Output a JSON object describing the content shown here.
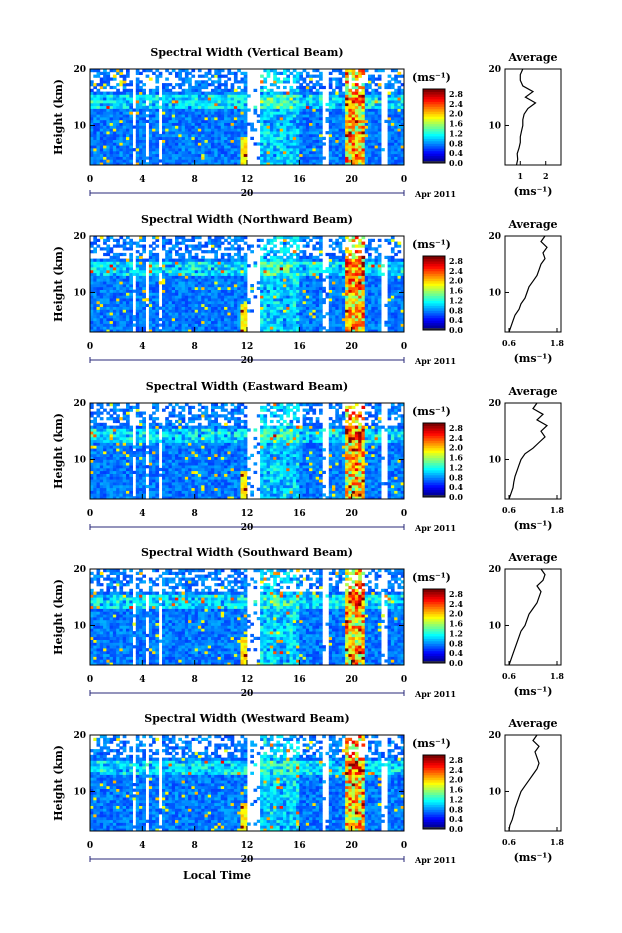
{
  "figure": {
    "date_label": "Apr 2011",
    "xlabel": "Local Time",
    "colorbar_unit": "(ms⁻¹)",
    "avg_title": "Average",
    "avg_unit": "(ms⁻¹)",
    "ylabel": "Height (km)"
  },
  "chart_data": [
    {
      "type": "heatmap",
      "title": "Spectral Width (Vertical Beam)",
      "ylabel": "Height (km)",
      "xlim": [
        0,
        24
      ],
      "ylim": [
        3,
        20
      ],
      "x_ticks": [
        "0",
        "4",
        "8",
        "12",
        "16",
        "20",
        "0"
      ],
      "day_tick": "20",
      "y_ticks": [
        "10",
        "20"
      ],
      "colorbar_ticks": [
        "0.0",
        "0.4",
        "0.8",
        "1.2",
        "1.6",
        "2.0",
        "2.4",
        "2.8"
      ],
      "colorbar_range": [
        0,
        3.0
      ],
      "average": {
        "xticks": [
          "1",
          "2"
        ],
        "xlim": [
          0.4,
          2.6
        ],
        "height": [
          3,
          4,
          5,
          6,
          7,
          8,
          9,
          10,
          11,
          12,
          13,
          14,
          15,
          16,
          17,
          18,
          19,
          20
        ],
        "value": [
          0.85,
          0.9,
          0.88,
          0.95,
          1.0,
          1.0,
          1.05,
          1.1,
          1.1,
          1.15,
          1.3,
          1.6,
          1.2,
          1.5,
          1.1,
          1.0,
          1.0,
          1.1
        ]
      }
    },
    {
      "type": "heatmap",
      "title": "Spectral Width (Northward Beam)",
      "ylabel": "Height (km)",
      "xlim": [
        0,
        24
      ],
      "ylim": [
        3,
        20
      ],
      "x_ticks": [
        "0",
        "4",
        "8",
        "12",
        "16",
        "20",
        "0"
      ],
      "day_tick": "20",
      "y_ticks": [
        "10",
        "20"
      ],
      "colorbar_ticks": [
        "0.0",
        "0.4",
        "0.8",
        "1.2",
        "1.6",
        "2.0",
        "2.4",
        "2.8"
      ],
      "colorbar_range": [
        0,
        3.0
      ],
      "average": {
        "xticks": [
          "0.6",
          "1.8"
        ],
        "xlim": [
          0.5,
          1.9
        ],
        "height": [
          3,
          4,
          5,
          6,
          7,
          8,
          9,
          10,
          11,
          12,
          13,
          14,
          15,
          16,
          17,
          18,
          19,
          20
        ],
        "value": [
          0.6,
          0.65,
          0.7,
          0.75,
          0.85,
          0.9,
          1.0,
          1.05,
          1.1,
          1.2,
          1.3,
          1.35,
          1.4,
          1.5,
          1.45,
          1.55,
          1.4,
          1.5
        ]
      }
    },
    {
      "type": "heatmap",
      "title": "Spectral Width (Eastward Beam)",
      "ylabel": "Height (km)",
      "xlim": [
        0,
        24
      ],
      "ylim": [
        3,
        20
      ],
      "x_ticks": [
        "0",
        "4",
        "8",
        "12",
        "16",
        "20",
        "0"
      ],
      "day_tick": "20",
      "y_ticks": [
        "10",
        "20"
      ],
      "colorbar_ticks": [
        "0.0",
        "0.4",
        "0.8",
        "1.2",
        "1.6",
        "2.0",
        "2.4",
        "2.8"
      ],
      "colorbar_range": [
        0,
        3.0
      ],
      "average": {
        "xticks": [
          "0.6",
          "1.8"
        ],
        "xlim": [
          0.5,
          1.9
        ],
        "height": [
          3,
          4,
          5,
          6,
          7,
          8,
          9,
          10,
          11,
          12,
          13,
          14,
          15,
          16,
          17,
          18,
          19,
          20
        ],
        "value": [
          0.6,
          0.65,
          0.7,
          0.72,
          0.75,
          0.8,
          0.85,
          0.9,
          1.0,
          1.2,
          1.35,
          1.5,
          1.4,
          1.55,
          1.3,
          1.45,
          1.2,
          1.3
        ]
      }
    },
    {
      "type": "heatmap",
      "title": "Spectral Width (Southward Beam)",
      "ylabel": "Height (km)",
      "xlim": [
        0,
        24
      ],
      "ylim": [
        3,
        20
      ],
      "x_ticks": [
        "0",
        "4",
        "8",
        "12",
        "16",
        "20",
        "0"
      ],
      "day_tick": "20",
      "y_ticks": [
        "10",
        "20"
      ],
      "colorbar_ticks": [
        "0.0",
        "0.4",
        "0.8",
        "1.2",
        "1.6",
        "2.0",
        "2.4",
        "2.8"
      ],
      "colorbar_range": [
        0,
        3.0
      ],
      "average": {
        "xticks": [
          "0.6",
          "1.8"
        ],
        "xlim": [
          0.5,
          1.9
        ],
        "height": [
          3,
          4,
          5,
          6,
          7,
          8,
          9,
          10,
          11,
          12,
          13,
          14,
          15,
          16,
          17,
          18,
          19,
          20
        ],
        "value": [
          0.6,
          0.65,
          0.7,
          0.75,
          0.8,
          0.85,
          0.9,
          1.0,
          1.05,
          1.1,
          1.2,
          1.3,
          1.35,
          1.4,
          1.3,
          1.45,
          1.5,
          1.4
        ]
      }
    },
    {
      "type": "heatmap",
      "title": "Spectral Width (Westward Beam)",
      "ylabel": "Height (km)",
      "xlim": [
        0,
        24
      ],
      "ylim": [
        3,
        20
      ],
      "x_ticks": [
        "0",
        "4",
        "8",
        "12",
        "16",
        "20",
        "0"
      ],
      "day_tick": "20",
      "y_ticks": [
        "10",
        "20"
      ],
      "colorbar_ticks": [
        "0.0",
        "0.4",
        "0.8",
        "1.2",
        "1.6",
        "2.0",
        "2.4",
        "2.8"
      ],
      "colorbar_range": [
        0,
        3.0
      ],
      "average": {
        "xticks": [
          "0.6",
          "1.8"
        ],
        "xlim": [
          0.5,
          1.9
        ],
        "height": [
          3,
          4,
          5,
          6,
          7,
          8,
          9,
          10,
          11,
          12,
          13,
          14,
          15,
          16,
          17,
          18,
          19,
          20
        ],
        "value": [
          0.6,
          0.62,
          0.68,
          0.72,
          0.75,
          0.8,
          0.85,
          0.9,
          1.0,
          1.1,
          1.2,
          1.3,
          1.35,
          1.3,
          1.25,
          1.35,
          1.2,
          1.3
        ]
      }
    }
  ]
}
